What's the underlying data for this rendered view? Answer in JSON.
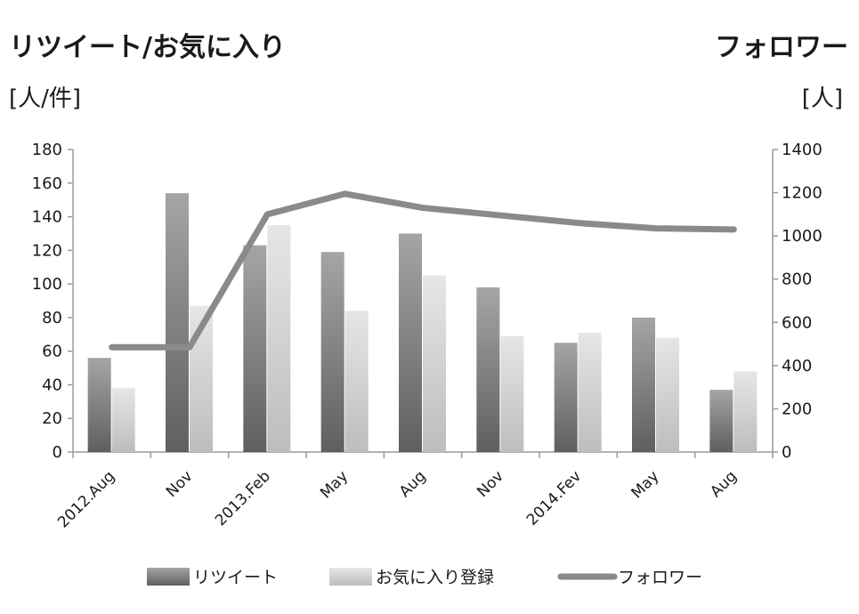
{
  "chart_data": {
    "type": "bar",
    "left_axis_title": "リツイート/お気に入り",
    "left_axis_unit": "[人/件]",
    "right_axis_title": "フォロワー",
    "right_axis_unit": "[人]",
    "categories": [
      "2012.Aug",
      "Nov",
      "2013.Feb",
      "May",
      "Aug",
      "Nov",
      "2014.Fev",
      "May",
      "Aug"
    ],
    "ylim_left": [
      0,
      180
    ],
    "ylim_right": [
      0,
      1400
    ],
    "yticks_left": [
      0,
      20,
      40,
      60,
      80,
      100,
      120,
      140,
      160,
      180
    ],
    "yticks_right": [
      0,
      200,
      400,
      600,
      800,
      1000,
      1200,
      1400
    ],
    "series": [
      {
        "name": "リツイート",
        "type": "bar",
        "axis": "left",
        "color": "#7a7a7a",
        "values": [
          56,
          154,
          123,
          119,
          130,
          98,
          65,
          80,
          37
        ]
      },
      {
        "name": "お気に入り登録",
        "type": "bar",
        "axis": "left",
        "color": "#cfcfcf",
        "values": [
          38,
          87,
          135,
          84,
          105,
          69,
          71,
          68,
          48
        ]
      },
      {
        "name": "フォロワー",
        "type": "line",
        "axis": "right",
        "color": "#8a8a8a",
        "values": [
          485,
          485,
          1100,
          1195,
          1130,
          1095,
          1060,
          1035,
          1030
        ]
      }
    ],
    "legend_position": "bottom",
    "grid": false
  }
}
